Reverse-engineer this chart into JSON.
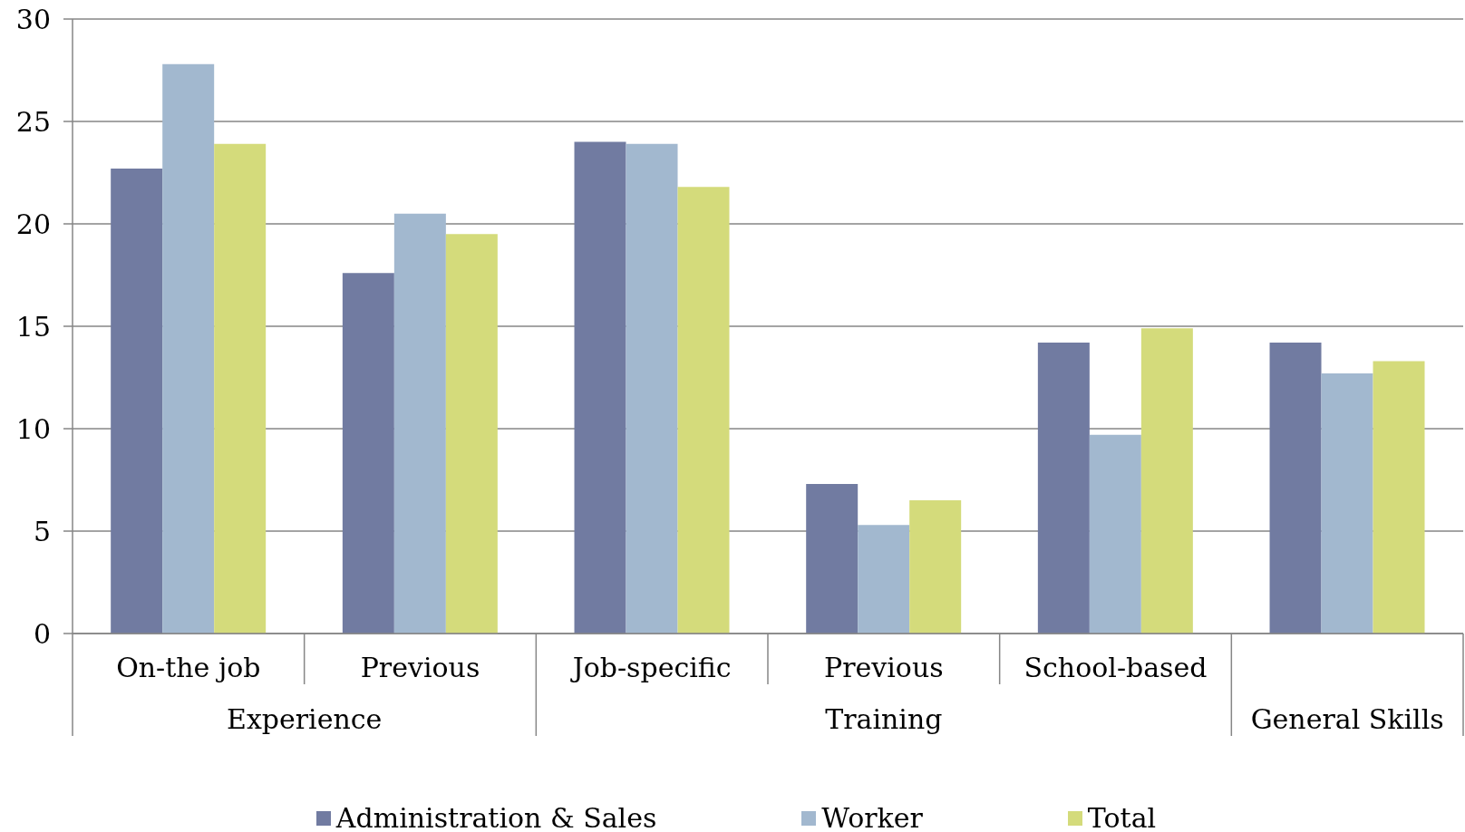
{
  "chart_data": {
    "type": "bar",
    "categories": [
      "On-the job",
      "Previous",
      "Job-specific",
      "Previous",
      "School-based",
      null
    ],
    "series": [
      {
        "name": "Administration & Sales",
        "color": "#717ba1",
        "values": [
          22.7,
          17.6,
          24.0,
          7.3,
          14.2,
          14.2
        ]
      },
      {
        "name": "Worker",
        "color": "#a2b8cf",
        "values": [
          27.8,
          20.5,
          23.9,
          5.3,
          9.7,
          12.7
        ]
      },
      {
        "name": "Total",
        "color": "#d4db7b",
        "values": [
          23.9,
          19.5,
          21.8,
          6.5,
          14.9,
          13.3
        ]
      }
    ],
    "ylim": [
      0,
      30
    ],
    "yticks": [
      0,
      5,
      10,
      15,
      20,
      25,
      30
    ],
    "grid": "y",
    "legend": "bottom",
    "annotations": [
      "Experience",
      "Training",
      "General Skills"
    ]
  }
}
